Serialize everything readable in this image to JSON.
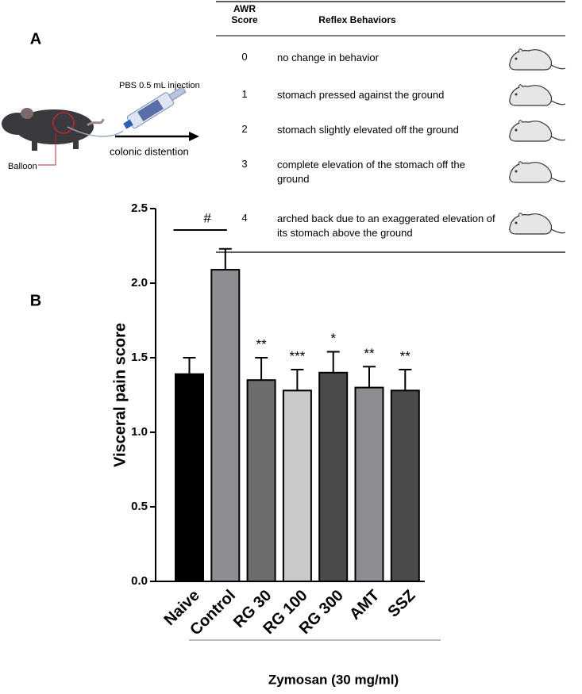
{
  "panel_a": {
    "label": "A",
    "injection": "PBS 0.5 mL injection",
    "balloon": "Balloon",
    "arrow_label": "colonic distention",
    "table": {
      "header": [
        "AWR Score",
        "Reflex Behaviors"
      ],
      "rows": [
        [
          "0",
          "no change in behavior"
        ],
        [
          "1",
          "stomach pressed against the ground"
        ],
        [
          "2",
          "stomach slightly elevated off the ground"
        ],
        [
          "3",
          "complete elevation of the stomach off the ground"
        ],
        [
          "4",
          "arched back due to an exaggerated elevation of its stomach above the ground"
        ]
      ]
    }
  },
  "chart_data": {
    "type": "bar",
    "panel_label": "B",
    "ylabel": "Visceral pain score",
    "group_label": "Zymosan (30 mg/ml)",
    "categories": [
      "Naive",
      "Control",
      "RG 30",
      "RG 100",
      "RG 300",
      "AMT",
      "SSZ"
    ],
    "values": [
      1.39,
      2.09,
      1.35,
      1.28,
      1.4,
      1.3,
      1.28
    ],
    "errors": [
      0.11,
      0.14,
      0.15,
      0.14,
      0.14,
      0.14,
      0.14
    ],
    "colors": [
      "#000000",
      "#8e8e92",
      "#6c6c6c",
      "#c9c9c9",
      "#4a4a4a",
      "#8e8e92",
      "#4a4a4a"
    ],
    "significance": [
      null,
      null,
      "**",
      "***",
      "*",
      "**",
      "**"
    ],
    "bracket_label": "#",
    "ylim": [
      0,
      2.5
    ],
    "yticks": [
      {
        "value": 0,
        "label": "0.0"
      },
      0.5,
      {
        "value": 1,
        "label": "1.0"
      },
      1.5,
      {
        "value": 2,
        "label": "2.0"
      },
      2.5
    ]
  }
}
